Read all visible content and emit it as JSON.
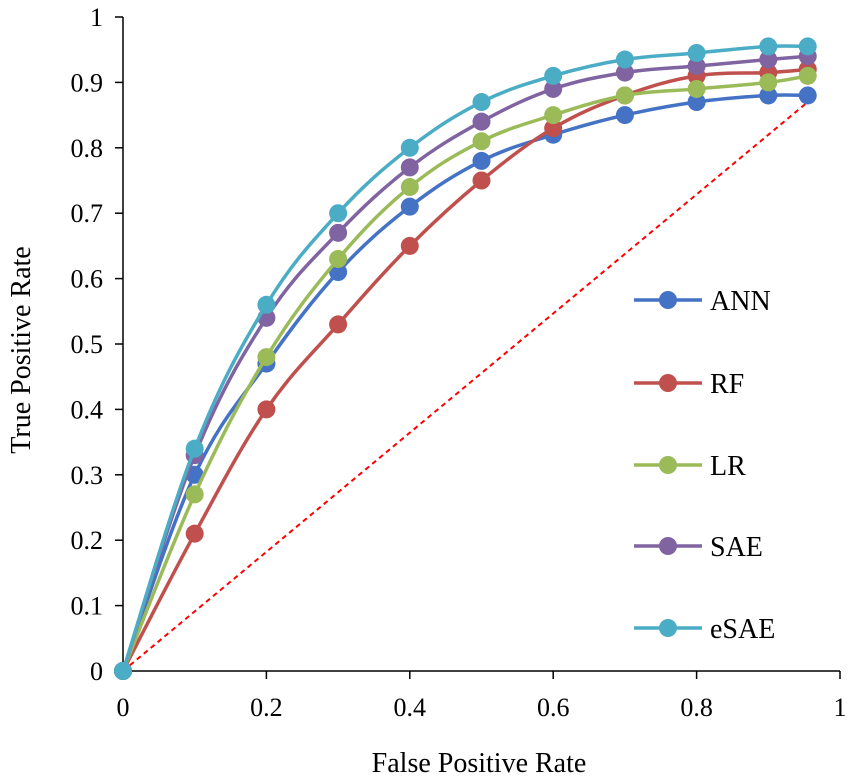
{
  "chart_data": {
    "type": "line",
    "title": "",
    "xlabel": "False Positive Rate",
    "ylabel": "True Positive Rate",
    "xlim": [
      0,
      1
    ],
    "ylim": [
      0,
      1
    ],
    "x_ticks": [
      "0",
      "0.2",
      "0.4",
      "0.6",
      "0.8",
      "1"
    ],
    "y_ticks": [
      "0",
      "0.1",
      "0.2",
      "0.3",
      "0.4",
      "0.5",
      "0.6",
      "0.7",
      "0.8",
      "0.9",
      "1"
    ],
    "x": [
      0,
      0.1,
      0.2,
      0.3,
      0.4,
      0.5,
      0.6,
      0.7,
      0.8,
      0.9,
      0.955
    ],
    "series": [
      {
        "name": "ANN",
        "color": "#4472C4",
        "values": [
          0,
          0.3,
          0.47,
          0.61,
          0.71,
          0.78,
          0.82,
          0.85,
          0.87,
          0.88,
          0.88
        ]
      },
      {
        "name": "RF",
        "color": "#C0504D",
        "values": [
          0,
          0.21,
          0.4,
          0.53,
          0.65,
          0.75,
          0.83,
          0.88,
          0.91,
          0.915,
          0.92
        ]
      },
      {
        "name": "LR",
        "color": "#9BBB59",
        "values": [
          0,
          0.27,
          0.48,
          0.63,
          0.74,
          0.81,
          0.85,
          0.88,
          0.89,
          0.9,
          0.91
        ]
      },
      {
        "name": "SAE",
        "color": "#8064A2",
        "values": [
          0,
          0.33,
          0.54,
          0.67,
          0.77,
          0.84,
          0.89,
          0.915,
          0.925,
          0.935,
          0.94
        ]
      },
      {
        "name": "eSAE",
        "color": "#4BACC6",
        "values": [
          0,
          0.34,
          0.56,
          0.7,
          0.8,
          0.87,
          0.91,
          0.935,
          0.945,
          0.955,
          0.955
        ]
      }
    ],
    "reference_line": {
      "from": [
        0,
        0
      ],
      "to": [
        0.955,
        0.87
      ],
      "color": "#FF0000",
      "style": "dashed"
    },
    "legend_position": "right"
  }
}
